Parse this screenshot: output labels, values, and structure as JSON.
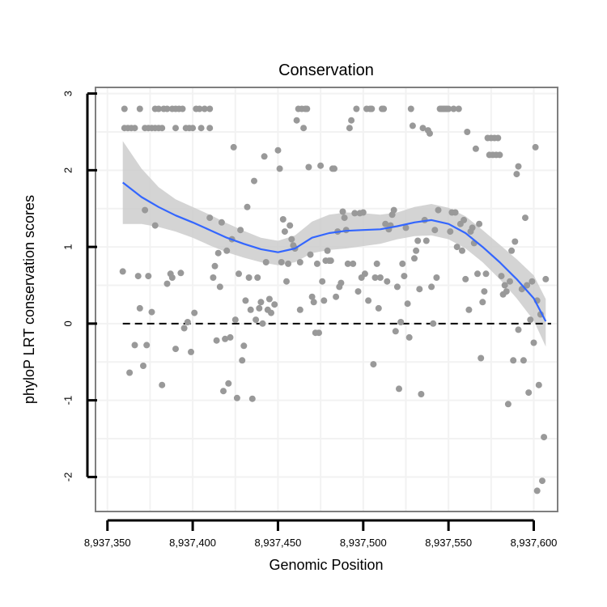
{
  "chart_data": {
    "type": "scatter",
    "title": "Conservation",
    "xlabel": "Genomic Position",
    "ylabel": "phyloP LRT conservation scores",
    "xlim": [
      8937343,
      8937614
    ],
    "ylim": [
      -2.45,
      3.08
    ],
    "x_ticks": [
      8937350,
      8937400,
      8937450,
      8937500,
      8937550,
      8937600
    ],
    "x_tick_labels": [
      "8,937,350",
      "8,937,400",
      "8,937,450",
      "8,937,500",
      "8,937,550",
      "8,937,600"
    ],
    "y_ticks": [
      -2,
      -1,
      0,
      1,
      2,
      3
    ],
    "y_tick_labels": [
      "-2",
      "-1",
      "0",
      "1",
      "2",
      "3"
    ],
    "grid": true,
    "reference_line": {
      "y": 0,
      "style": "dashed",
      "color": "#000000"
    },
    "colors": {
      "points": "#999999",
      "smooth": "#3366ff",
      "band": "#cccccc",
      "frame": "#7f7f7f",
      "grid": "#f2f2f2"
    },
    "smooth": {
      "method": "loess",
      "x": [
        8937359,
        8937370,
        8937380,
        8937390,
        8937400,
        8937410,
        8937420,
        8937430,
        8937440,
        8937450,
        8937460,
        8937470,
        8937480,
        8937490,
        8937500,
        8937510,
        8937520,
        8937530,
        8937540,
        8937550,
        8937560,
        8937570,
        8937580,
        8937590,
        8937600,
        8937607
      ],
      "y": [
        1.84,
        1.65,
        1.52,
        1.41,
        1.32,
        1.22,
        1.12,
        1.04,
        0.97,
        0.93,
        0.98,
        1.12,
        1.18,
        1.21,
        1.22,
        1.23,
        1.27,
        1.32,
        1.35,
        1.3,
        1.18,
        1.0,
        0.8,
        0.58,
        0.33,
        0.03
      ],
      "upper": [
        2.38,
        2.02,
        1.78,
        1.62,
        1.52,
        1.42,
        1.31,
        1.21,
        1.12,
        1.08,
        1.15,
        1.33,
        1.42,
        1.45,
        1.44,
        1.42,
        1.45,
        1.52,
        1.56,
        1.51,
        1.4,
        1.22,
        1.03,
        0.84,
        0.63,
        0.32
      ],
      "lower": [
        1.3,
        1.3,
        1.26,
        1.2,
        1.12,
        1.02,
        0.93,
        0.86,
        0.8,
        0.76,
        0.8,
        0.92,
        0.96,
        0.98,
        1.01,
        1.04,
        1.1,
        1.14,
        1.15,
        1.1,
        0.98,
        0.8,
        0.58,
        0.33,
        0.04,
        -0.3
      ]
    },
    "points": [
      {
        "x": 8937360,
        "y": 2.8
      },
      {
        "x": 8937360,
        "y": 2.55
      },
      {
        "x": 8937362,
        "y": 2.55
      },
      {
        "x": 8937364,
        "y": 2.55
      },
      {
        "x": 8937366,
        "y": 2.55
      },
      {
        "x": 8937369,
        "y": 2.8
      },
      {
        "x": 8937372,
        "y": 2.55
      },
      {
        "x": 8937374,
        "y": 2.55
      },
      {
        "x": 8937376,
        "y": 2.55
      },
      {
        "x": 8937378,
        "y": 2.8
      },
      {
        "x": 8937378,
        "y": 2.55
      },
      {
        "x": 8937380,
        "y": 2.55
      },
      {
        "x": 8937380,
        "y": 2.8
      },
      {
        "x": 8937382,
        "y": 2.55
      },
      {
        "x": 8937383,
        "y": 2.8
      },
      {
        "x": 8937385,
        "y": 2.8
      },
      {
        "x": 8937388,
        "y": 2.8
      },
      {
        "x": 8937390,
        "y": 2.8
      },
      {
        "x": 8937390,
        "y": 2.55
      },
      {
        "x": 8937392,
        "y": 2.8
      },
      {
        "x": 8937394,
        "y": 2.8
      },
      {
        "x": 8937396,
        "y": 2.55
      },
      {
        "x": 8937398,
        "y": 2.55
      },
      {
        "x": 8937400,
        "y": 2.55
      },
      {
        "x": 8937402,
        "y": 2.8
      },
      {
        "x": 8937404,
        "y": 2.8
      },
      {
        "x": 8937405,
        "y": 2.55
      },
      {
        "x": 8937407,
        "y": 2.8
      },
      {
        "x": 8937410,
        "y": 2.8
      },
      {
        "x": 8937410,
        "y": 2.55
      },
      {
        "x": 8937359,
        "y": 0.68
      },
      {
        "x": 8937363,
        "y": -0.64
      },
      {
        "x": 8937366,
        "y": -0.28
      },
      {
        "x": 8937368,
        "y": 0.62
      },
      {
        "x": 8937369,
        "y": 0.2
      },
      {
        "x": 8937371,
        "y": -0.55
      },
      {
        "x": 8937372,
        "y": 1.48
      },
      {
        "x": 8937373,
        "y": -0.28
      },
      {
        "x": 8937374,
        "y": 0.62
      },
      {
        "x": 8937376,
        "y": 0.15
      },
      {
        "x": 8937378,
        "y": 1.28
      },
      {
        "x": 8937382,
        "y": -0.8
      },
      {
        "x": 8937385,
        "y": 0.52
      },
      {
        "x": 8937387,
        "y": 0.65
      },
      {
        "x": 8937388,
        "y": 0.6
      },
      {
        "x": 8937390,
        "y": -0.33
      },
      {
        "x": 8937393,
        "y": 0.66
      },
      {
        "x": 8937395,
        "y": -0.06
      },
      {
        "x": 8937397,
        "y": 0.02
      },
      {
        "x": 8937399,
        "y": -0.37
      },
      {
        "x": 8937401,
        "y": 0.14
      },
      {
        "x": 8937410,
        "y": 1.38
      },
      {
        "x": 8937412,
        "y": 0.6
      },
      {
        "x": 8937413,
        "y": 0.75
      },
      {
        "x": 8937414,
        "y": -0.22
      },
      {
        "x": 8937415,
        "y": 0.92
      },
      {
        "x": 8937416,
        "y": 0.48
      },
      {
        "x": 8937417,
        "y": 1.32
      },
      {
        "x": 8937418,
        "y": -0.88
      },
      {
        "x": 8937419,
        "y": -0.2
      },
      {
        "x": 8937420,
        "y": 0.95
      },
      {
        "x": 8937421,
        "y": -0.78
      },
      {
        "x": 8937422,
        "y": -0.18
      },
      {
        "x": 8937423,
        "y": 1.1
      },
      {
        "x": 8937424,
        "y": 2.3
      },
      {
        "x": 8937425,
        "y": 0.05
      },
      {
        "x": 8937426,
        "y": -0.97
      },
      {
        "x": 8937427,
        "y": 0.65
      },
      {
        "x": 8937428,
        "y": 1.22
      },
      {
        "x": 8937429,
        "y": -0.48
      },
      {
        "x": 8937430,
        "y": -0.29
      },
      {
        "x": 8937431,
        "y": 0.3
      },
      {
        "x": 8937432,
        "y": 1.52
      },
      {
        "x": 8937433,
        "y": 0.6
      },
      {
        "x": 8937434,
        "y": 0.18
      },
      {
        "x": 8937435,
        "y": -0.98
      },
      {
        "x": 8937436,
        "y": 1.86
      },
      {
        "x": 8937437,
        "y": 0.05
      },
      {
        "x": 8937438,
        "y": 0.6
      },
      {
        "x": 8937439,
        "y": 0.2
      },
      {
        "x": 8937440,
        "y": 0.28
      },
      {
        "x": 8937441,
        "y": 0.0
      },
      {
        "x": 8937442,
        "y": 2.18
      },
      {
        "x": 8937443,
        "y": 0.8
      },
      {
        "x": 8937444,
        "y": 0.18
      },
      {
        "x": 8937445,
        "y": 0.32
      },
      {
        "x": 8937446,
        "y": 0.14
      },
      {
        "x": 8937448,
        "y": 0.25
      },
      {
        "x": 8937450,
        "y": 2.26
      },
      {
        "x": 8937451,
        "y": 2.02
      },
      {
        "x": 8937452,
        "y": 0.8
      },
      {
        "x": 8937453,
        "y": 1.36
      },
      {
        "x": 8937454,
        "y": 1.2
      },
      {
        "x": 8937455,
        "y": 0.55
      },
      {
        "x": 8937456,
        "y": 0.78
      },
      {
        "x": 8937457,
        "y": 1.28
      },
      {
        "x": 8937458,
        "y": 1.1
      },
      {
        "x": 8937459,
        "y": 1.02
      },
      {
        "x": 8937460,
        "y": 0.98
      },
      {
        "x": 8937461,
        "y": 2.65
      },
      {
        "x": 8937462,
        "y": 2.8
      },
      {
        "x": 8937463,
        "y": 0.18
      },
      {
        "x": 8937463,
        "y": 0.8
      },
      {
        "x": 8937464,
        "y": 2.8
      },
      {
        "x": 8937465,
        "y": 2.55
      },
      {
        "x": 8937466,
        "y": 2.8
      },
      {
        "x": 8937467,
        "y": 2.8
      },
      {
        "x": 8937468,
        "y": 2.04
      },
      {
        "x": 8937469,
        "y": 0.9
      },
      {
        "x": 8937470,
        "y": 0.35
      },
      {
        "x": 8937471,
        "y": 0.28
      },
      {
        "x": 8937472,
        "y": -0.12
      },
      {
        "x": 8937473,
        "y": 0.78
      },
      {
        "x": 8937474,
        "y": -0.12
      },
      {
        "x": 8937475,
        "y": 2.06
      },
      {
        "x": 8937476,
        "y": 0.55
      },
      {
        "x": 8937477,
        "y": 0.3
      },
      {
        "x": 8937478,
        "y": 0.82
      },
      {
        "x": 8937479,
        "y": 0.95
      },
      {
        "x": 8937480,
        "y": 0.82
      },
      {
        "x": 8937481,
        "y": 0.82
      },
      {
        "x": 8937482,
        "y": 2.02
      },
      {
        "x": 8937483,
        "y": 2.02
      },
      {
        "x": 8937484,
        "y": 0.35
      },
      {
        "x": 8937485,
        "y": 1.2
      },
      {
        "x": 8937486,
        "y": 0.48
      },
      {
        "x": 8937487,
        "y": 0.53
      },
      {
        "x": 8937488,
        "y": 1.46
      },
      {
        "x": 8937489,
        "y": 1.38
      },
      {
        "x": 8937490,
        "y": 1.22
      },
      {
        "x": 8937491,
        "y": 0.78
      },
      {
        "x": 8937492,
        "y": 2.55
      },
      {
        "x": 8937493,
        "y": 2.65
      },
      {
        "x": 8937494,
        "y": 0.78
      },
      {
        "x": 8937495,
        "y": 1.44
      },
      {
        "x": 8937496,
        "y": 2.8
      },
      {
        "x": 8937497,
        "y": 0.42
      },
      {
        "x": 8937498,
        "y": 1.44
      },
      {
        "x": 8937499,
        "y": 0.6
      },
      {
        "x": 8937500,
        "y": 1.45
      },
      {
        "x": 8937501,
        "y": 0.65
      },
      {
        "x": 8937502,
        "y": 2.8
      },
      {
        "x": 8937503,
        "y": 0.3
      },
      {
        "x": 8937504,
        "y": 2.8
      },
      {
        "x": 8937505,
        "y": 2.8
      },
      {
        "x": 8937506,
        "y": -0.53
      },
      {
        "x": 8937507,
        "y": 0.6
      },
      {
        "x": 8937508,
        "y": 0.78
      },
      {
        "x": 8937509,
        "y": 0.2
      },
      {
        "x": 8937510,
        "y": 0.6
      },
      {
        "x": 8937511,
        "y": 2.8
      },
      {
        "x": 8937512,
        "y": 2.8
      },
      {
        "x": 8937513,
        "y": 1.3
      },
      {
        "x": 8937514,
        "y": 0.55
      },
      {
        "x": 8937515,
        "y": 1.23
      },
      {
        "x": 8937516,
        "y": 1.28
      },
      {
        "x": 8937517,
        "y": 1.42
      },
      {
        "x": 8937518,
        "y": 1.48
      },
      {
        "x": 8937519,
        "y": -0.1
      },
      {
        "x": 8937520,
        "y": 0.48
      },
      {
        "x": 8937521,
        "y": -0.85
      },
      {
        "x": 8937522,
        "y": 0.02
      },
      {
        "x": 8937523,
        "y": 0.78
      },
      {
        "x": 8937524,
        "y": 0.62
      },
      {
        "x": 8937525,
        "y": 1.25
      },
      {
        "x": 8937526,
        "y": 0.26
      },
      {
        "x": 8937527,
        "y": -0.18
      },
      {
        "x": 8937528,
        "y": 2.8
      },
      {
        "x": 8937529,
        "y": 2.58
      },
      {
        "x": 8937530,
        "y": 0.85
      },
      {
        "x": 8937531,
        "y": 0.95
      },
      {
        "x": 8937532,
        "y": 1.08
      },
      {
        "x": 8937533,
        "y": 0.45
      },
      {
        "x": 8937534,
        "y": -0.92
      },
      {
        "x": 8937535,
        "y": 2.55
      },
      {
        "x": 8937536,
        "y": 1.35
      },
      {
        "x": 8937537,
        "y": 1.08
      },
      {
        "x": 8937538,
        "y": 2.52
      },
      {
        "x": 8937539,
        "y": 2.48
      },
      {
        "x": 8937540,
        "y": 0.48
      },
      {
        "x": 8937541,
        "y": 0.0
      },
      {
        "x": 8937542,
        "y": 1.22
      },
      {
        "x": 8937543,
        "y": 0.6
      },
      {
        "x": 8937544,
        "y": 1.48
      },
      {
        "x": 8937545,
        "y": 2.8
      },
      {
        "x": 8937546,
        "y": 2.8
      },
      {
        "x": 8937547,
        "y": 2.8
      },
      {
        "x": 8937548,
        "y": 2.8
      },
      {
        "x": 8937549,
        "y": 2.8
      },
      {
        "x": 8937550,
        "y": 2.8
      },
      {
        "x": 8937551,
        "y": 1.2
      },
      {
        "x": 8937552,
        "y": 1.45
      },
      {
        "x": 8937553,
        "y": 2.8
      },
      {
        "x": 8937554,
        "y": 1.45
      },
      {
        "x": 8937555,
        "y": 1.0
      },
      {
        "x": 8937556,
        "y": 2.8
      },
      {
        "x": 8937557,
        "y": 1.3
      },
      {
        "x": 8937558,
        "y": 0.95
      },
      {
        "x": 8937559,
        "y": 1.35
      },
      {
        "x": 8937560,
        "y": 0.58
      },
      {
        "x": 8937561,
        "y": 2.5
      },
      {
        "x": 8937562,
        "y": 0.18
      },
      {
        "x": 8937563,
        "y": 1.2
      },
      {
        "x": 8937564,
        "y": 1.25
      },
      {
        "x": 8937565,
        "y": 1.05
      },
      {
        "x": 8937566,
        "y": 2.28
      },
      {
        "x": 8937567,
        "y": 0.65
      },
      {
        "x": 8937568,
        "y": 1.3
      },
      {
        "x": 8937569,
        "y": -0.45
      },
      {
        "x": 8937570,
        "y": 0.28
      },
      {
        "x": 8937571,
        "y": 0.42
      },
      {
        "x": 8937572,
        "y": 0.65
      },
      {
        "x": 8937573,
        "y": 2.42
      },
      {
        "x": 8937574,
        "y": 2.2
      },
      {
        "x": 8937575,
        "y": 2.42
      },
      {
        "x": 8937576,
        "y": 2.2
      },
      {
        "x": 8937577,
        "y": 2.42
      },
      {
        "x": 8937578,
        "y": 2.2
      },
      {
        "x": 8937579,
        "y": 2.42
      },
      {
        "x": 8937580,
        "y": 2.2
      },
      {
        "x": 8937581,
        "y": 0.62
      },
      {
        "x": 8937582,
        "y": 0.38
      },
      {
        "x": 8937583,
        "y": 0.5
      },
      {
        "x": 8937584,
        "y": 0.42
      },
      {
        "x": 8937585,
        "y": -1.05
      },
      {
        "x": 8937586,
        "y": 0.55
      },
      {
        "x": 8937587,
        "y": 0.95
      },
      {
        "x": 8937588,
        "y": -0.48
      },
      {
        "x": 8937589,
        "y": 1.07
      },
      {
        "x": 8937590,
        "y": 1.95
      },
      {
        "x": 8937591,
        "y": 2.05
      },
      {
        "x": 8937591,
        "y": -0.08
      },
      {
        "x": 8937593,
        "y": 0.45
      },
      {
        "x": 8937594,
        "y": -0.48
      },
      {
        "x": 8937595,
        "y": 1.38
      },
      {
        "x": 8937596,
        "y": 0.5
      },
      {
        "x": 8937597,
        "y": -0.9
      },
      {
        "x": 8937598,
        "y": 0.05
      },
      {
        "x": 8937599,
        "y": 0.55
      },
      {
        "x": 8937600,
        "y": -0.25
      },
      {
        "x": 8937601,
        "y": 2.3
      },
      {
        "x": 8937602,
        "y": 0.3
      },
      {
        "x": 8937602,
        "y": -2.18
      },
      {
        "x": 8937603,
        "y": -0.8
      },
      {
        "x": 8937604,
        "y": 0.12
      },
      {
        "x": 8937605,
        "y": -2.05
      },
      {
        "x": 8937606,
        "y": -1.48
      },
      {
        "x": 8937607,
        "y": 0.58
      }
    ]
  }
}
